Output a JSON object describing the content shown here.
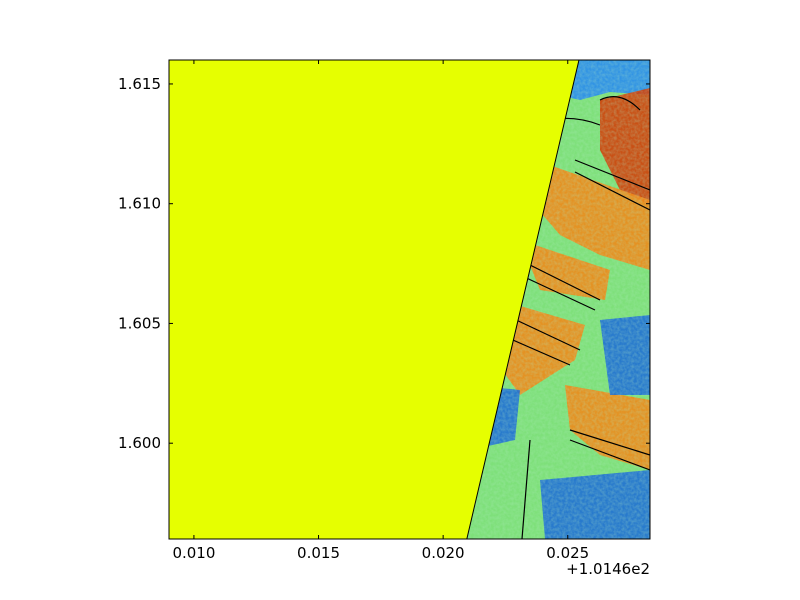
{
  "chart_data": {
    "type": "heatmap",
    "title": "",
    "xlabel": "",
    "ylabel": "",
    "x_offset_label": "+1.0146e2",
    "xlim": [
      0.009,
      0.0283
    ],
    "ylim": [
      1.596,
      1.616
    ],
    "x_ticks": [
      {
        "value": 0.01,
        "label": "0.010"
      },
      {
        "value": 0.015,
        "label": "0.015"
      },
      {
        "value": 0.02,
        "label": "0.020"
      },
      {
        "value": 0.025,
        "label": "0.025"
      }
    ],
    "y_ticks": [
      {
        "value": 1.6,
        "label": "1.600"
      },
      {
        "value": 1.605,
        "label": "1.605"
      },
      {
        "value": 1.61,
        "label": "1.610"
      },
      {
        "value": 1.615,
        "label": "1.615"
      }
    ],
    "colormap": "jet",
    "nodata_color": "#e6ff00",
    "contour_color": "#000000",
    "nodata_boundary": [
      {
        "x": 0.02095,
        "y": 1.596
      },
      {
        "x": 0.02545,
        "y": 1.616
      }
    ],
    "regions": [
      {
        "name": "high-top-right",
        "level": "high",
        "color": "#d2400a"
      },
      {
        "name": "warm-stripes",
        "level": "medium-high",
        "color": "#f08a1a"
      },
      {
        "name": "mid-background",
        "level": "medium",
        "color": "#7ee07a"
      },
      {
        "name": "low-bottom-right",
        "level": "low",
        "color": "#1f6fd6"
      },
      {
        "name": "low-top-strip",
        "level": "low",
        "color": "#2a8cf0"
      }
    ],
    "grid": false
  }
}
